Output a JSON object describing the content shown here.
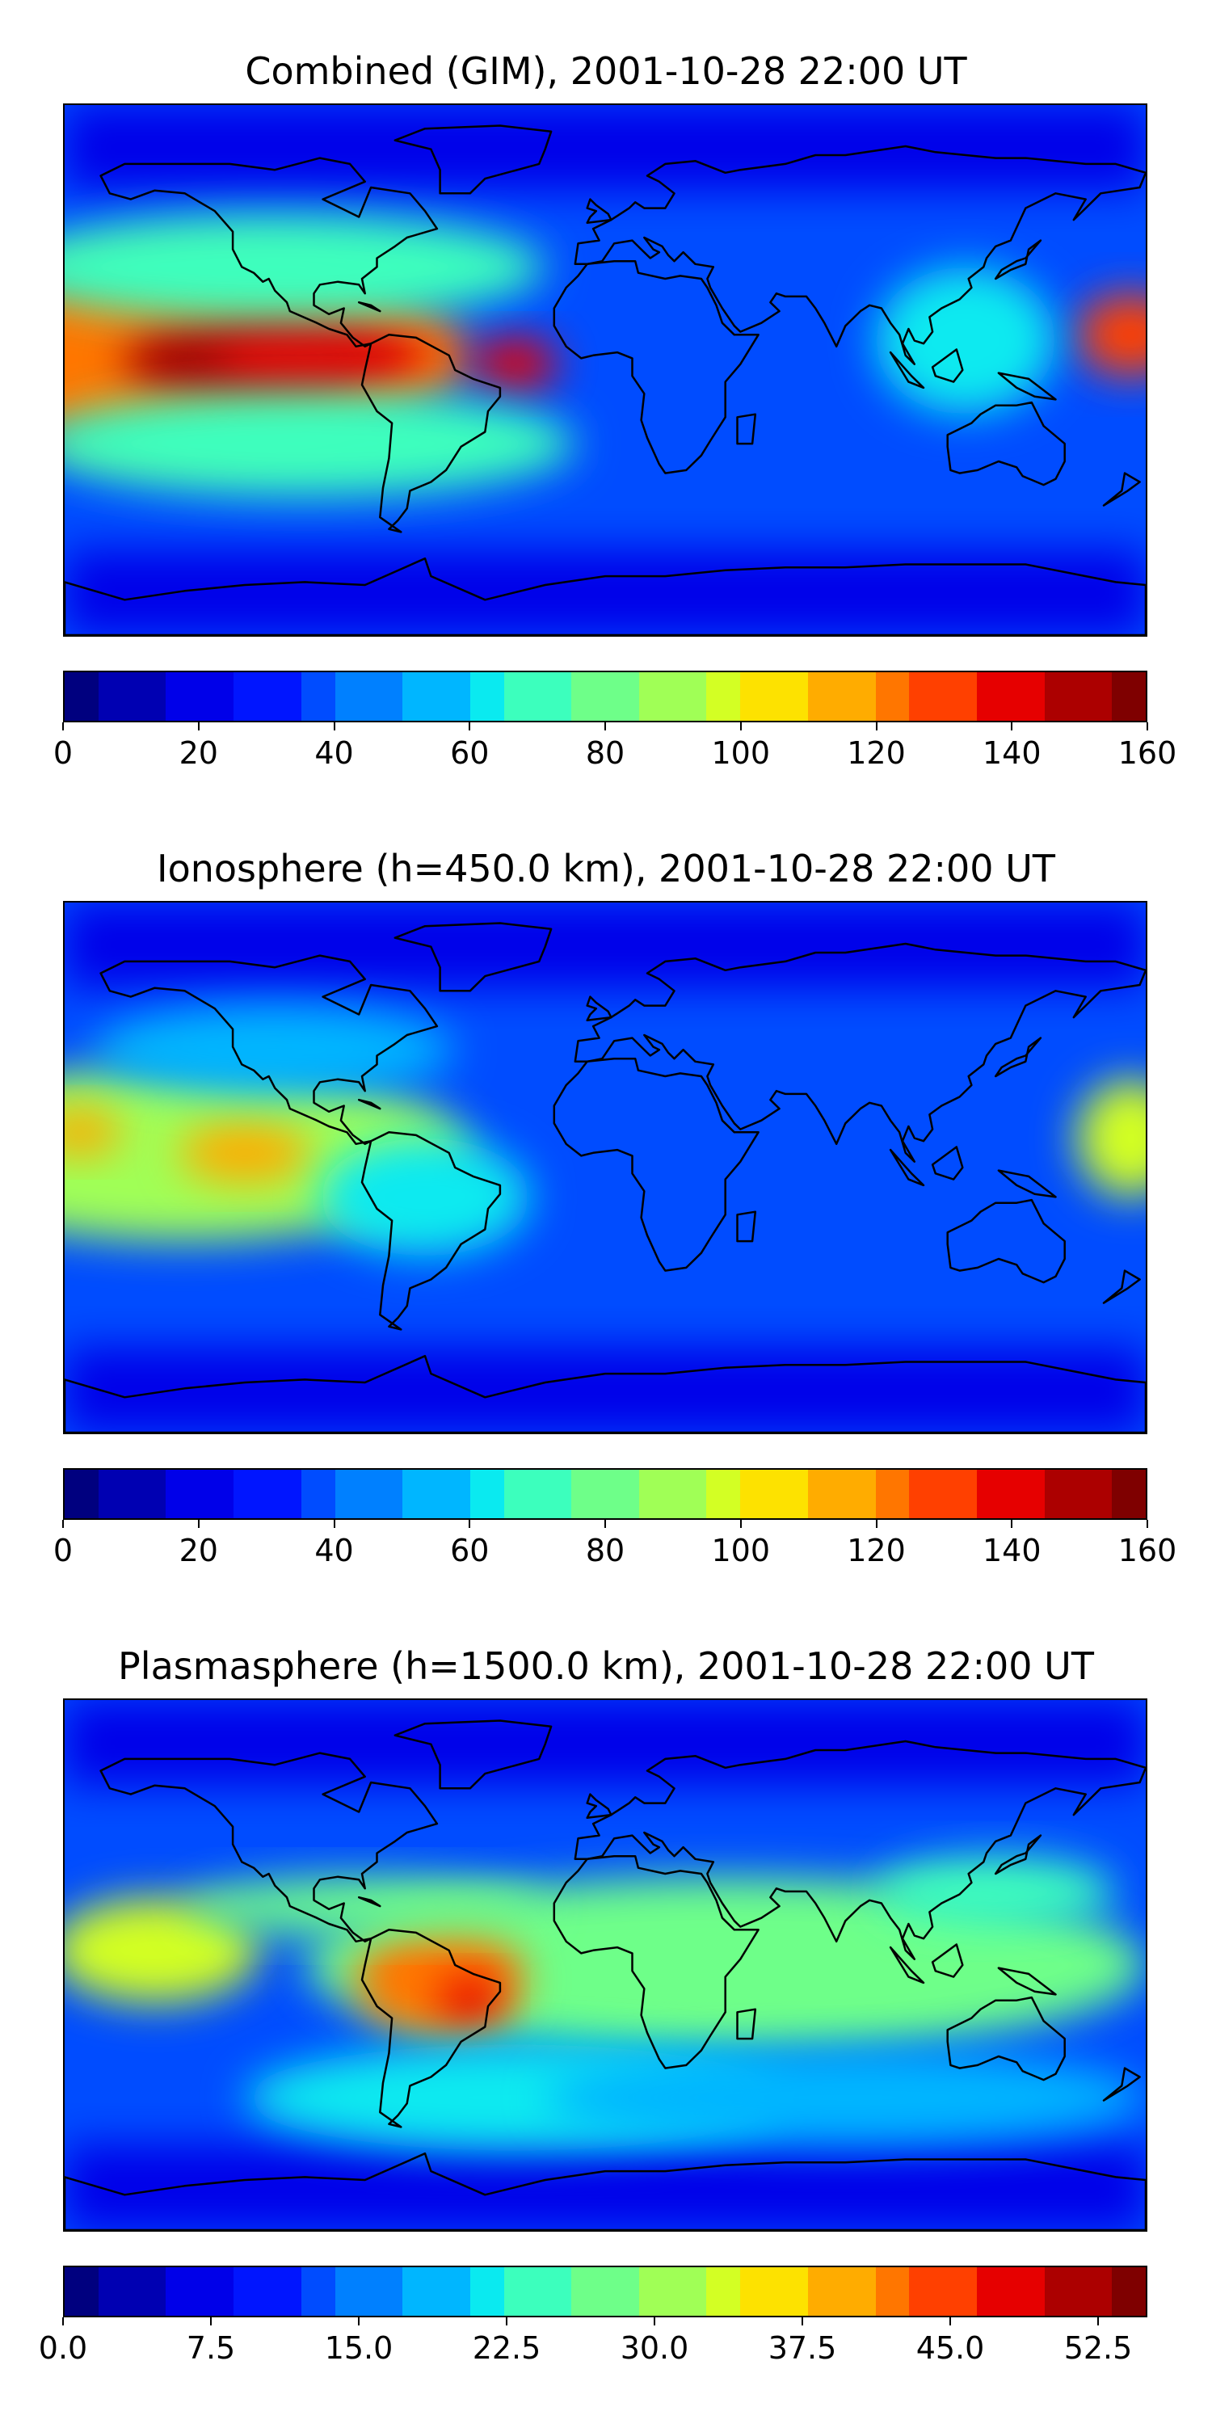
{
  "panels": [
    {
      "title": "Combined (GIM), 2001-10-28 22:00 UT",
      "colorbar": {
        "min": 0,
        "max": 160,
        "ticks": [
          "0",
          "20",
          "40",
          "60",
          "80",
          "100",
          "120",
          "140",
          "160"
        ]
      },
      "blobs": [
        {
          "lon": -140,
          "lat": 5,
          "rx": 95,
          "ry": 32,
          "level": 125
        },
        {
          "lon": -120,
          "lat": 3,
          "rx": 40,
          "ry": 16,
          "level": 150
        },
        {
          "lon": -95,
          "lat": 5,
          "rx": 35,
          "ry": 14,
          "level": 140
        },
        {
          "lon": -30,
          "lat": 2,
          "rx": 14,
          "ry": 9,
          "level": 140
        },
        {
          "lon": 175,
          "lat": 12,
          "rx": 18,
          "ry": 14,
          "level": 130
        },
        {
          "lon": -110,
          "lat": 35,
          "rx": 90,
          "ry": 18,
          "level": 70
        },
        {
          "lon": 120,
          "lat": 10,
          "rx": 30,
          "ry": 25,
          "level": 65
        },
        {
          "lon": -100,
          "lat": -25,
          "rx": 90,
          "ry": 18,
          "level": 70
        }
      ]
    },
    {
      "title": "Ionosphere  (h=450.0 km), 2001-10-28 22:00 UT",
      "colorbar": {
        "min": 0,
        "max": 160,
        "ticks": [
          "0",
          "20",
          "40",
          "60",
          "80",
          "100",
          "120",
          "140",
          "160"
        ]
      },
      "blobs": [
        {
          "lon": -140,
          "lat": 5,
          "rx": 95,
          "ry": 30,
          "level": 85
        },
        {
          "lon": -175,
          "lat": 12,
          "rx": 14,
          "ry": 8,
          "level": 115
        },
        {
          "lon": -120,
          "lat": 5,
          "rx": 22,
          "ry": 10,
          "level": 115
        },
        {
          "lon": 175,
          "lat": 10,
          "rx": 18,
          "ry": 20,
          "level": 100
        },
        {
          "lon": -60,
          "lat": -10,
          "rx": 35,
          "ry": 20,
          "level": 60
        },
        {
          "lon": -110,
          "lat": 40,
          "rx": 60,
          "ry": 15,
          "level": 55
        }
      ]
    },
    {
      "title": "Plasmasphere (h=1500.0 km), 2001-10-28 22:00 UT",
      "colorbar": {
        "min": 0,
        "max": 55,
        "ticks": [
          "0.0",
          "7.5",
          "15.0",
          "22.5",
          "30.0",
          "37.5",
          "45.0",
          "52.5"
        ]
      },
      "blobs": [
        {
          "lon": 40,
          "lat": 0,
          "rx": 140,
          "ry": 30,
          "level": 29
        },
        {
          "lon": -150,
          "lat": 5,
          "rx": 35,
          "ry": 18,
          "level": 34
        },
        {
          "lon": -55,
          "lat": -5,
          "rx": 28,
          "ry": 20,
          "level": 42
        },
        {
          "lon": -45,
          "lat": -12,
          "rx": 10,
          "ry": 8,
          "level": 50
        },
        {
          "lon": -80,
          "lat": 20,
          "rx": 60,
          "ry": 10,
          "level": 28
        },
        {
          "lon": 130,
          "lat": 25,
          "rx": 40,
          "ry": 12,
          "level": 25
        },
        {
          "lon": -30,
          "lat": -45,
          "rx": 90,
          "ry": 18,
          "level": 20
        },
        {
          "lon": 80,
          "lat": -45,
          "rx": 100,
          "ry": 16,
          "level": 18
        }
      ]
    }
  ],
  "colors": {
    "colormap": [
      "#00007f",
      "#0000b2",
      "#0000e9",
      "#0015ff",
      "#004cff",
      "#0080ff",
      "#00b6ff",
      "#0aeaf0",
      "#3cffbd",
      "#6eff89",
      "#a0ff56",
      "#d3ff24",
      "#fde200",
      "#ffac00",
      "#ff7600",
      "#ff4000",
      "#e60000",
      "#ac0000",
      "#7f0000"
    ],
    "land_outline": "#000000",
    "background": "#ffffff"
  },
  "icons": [
    "world-map-outline-icon"
  ]
}
